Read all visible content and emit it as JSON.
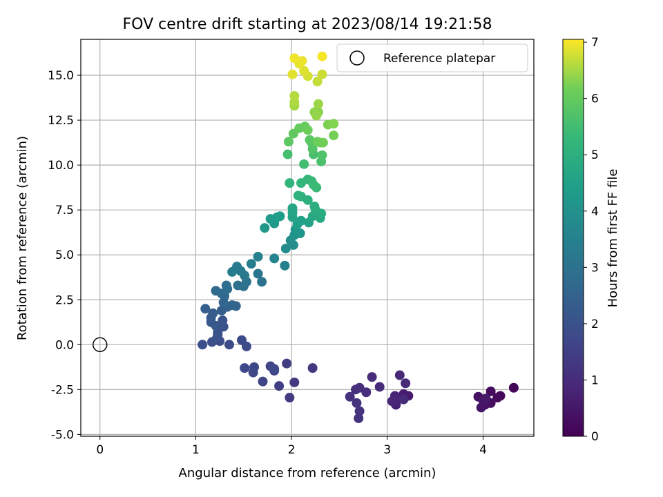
{
  "chart_data": {
    "type": "scatter",
    "title": "FOV centre drift starting at 2023/08/14 19:21:58",
    "xlabel": "Angular distance from reference (arcmin)",
    "ylabel": "Rotation from reference (arcmin)",
    "xlim": [
      -0.2,
      4.53
    ],
    "ylim": [
      -5.1,
      17.0
    ],
    "xticks": [
      0,
      1,
      2,
      3,
      4
    ],
    "yticks": [
      -5.0,
      -2.5,
      0.0,
      2.5,
      5.0,
      7.5,
      10.0,
      12.5,
      15.0
    ],
    "grid": true,
    "legend": {
      "position": "top-right",
      "label": "Reference platepar"
    },
    "reference_point": {
      "x": 0,
      "y": 0
    },
    "colorbar": {
      "label": "Hours from first FF file",
      "range": [
        0,
        7.05
      ],
      "ticks": [
        0,
        1,
        2,
        3,
        4,
        5,
        6,
        7
      ],
      "colormap": "viridis"
    },
    "points": [
      {
        "x": 4.32,
        "y": -2.4,
        "t": 0.1
      },
      {
        "x": 4.18,
        "y": -2.85,
        "t": 0.15
      },
      {
        "x": 4.15,
        "y": -2.95,
        "t": 0.2
      },
      {
        "x": 4.08,
        "y": -2.6,
        "t": 0.25
      },
      {
        "x": 4.08,
        "y": -3.25,
        "t": 0.3
      },
      {
        "x": 3.95,
        "y": -2.9,
        "t": 0.35
      },
      {
        "x": 4.02,
        "y": -3.35,
        "t": 0.4
      },
      {
        "x": 3.98,
        "y": -3.5,
        "t": 0.45
      },
      {
        "x": 4.0,
        "y": -3.1,
        "t": 0.5
      },
      {
        "x": 4.03,
        "y": -3.0,
        "t": 0.55
      },
      {
        "x": 3.22,
        "y": -2.85,
        "t": 0.6
      },
      {
        "x": 3.17,
        "y": -2.75,
        "t": 0.65
      },
      {
        "x": 3.12,
        "y": -3.0,
        "t": 0.7
      },
      {
        "x": 3.09,
        "y": -3.35,
        "t": 0.75
      },
      {
        "x": 3.08,
        "y": -2.85,
        "t": 0.8
      },
      {
        "x": 3.05,
        "y": -3.15,
        "t": 0.85
      },
      {
        "x": 3.13,
        "y": -1.7,
        "t": 0.9
      },
      {
        "x": 3.19,
        "y": -2.15,
        "t": 0.95
      },
      {
        "x": 3.17,
        "y": -3.05,
        "t": 1.0
      },
      {
        "x": 2.92,
        "y": -2.35,
        "t": 1.02
      },
      {
        "x": 2.84,
        "y": -1.8,
        "t": 1.05
      },
      {
        "x": 2.78,
        "y": -2.65,
        "t": 1.08
      },
      {
        "x": 2.71,
        "y": -2.4,
        "t": 1.1
      },
      {
        "x": 2.67,
        "y": -2.5,
        "t": 1.12
      },
      {
        "x": 2.61,
        "y": -2.9,
        "t": 1.14
      },
      {
        "x": 2.68,
        "y": -3.25,
        "t": 1.16
      },
      {
        "x": 2.71,
        "y": -3.7,
        "t": 1.18
      },
      {
        "x": 2.7,
        "y": -4.1,
        "t": 1.2
      },
      {
        "x": 2.22,
        "y": -1.3,
        "t": 1.3
      },
      {
        "x": 2.03,
        "y": -2.1,
        "t": 1.35
      },
      {
        "x": 1.98,
        "y": -2.95,
        "t": 1.4
      },
      {
        "x": 1.95,
        "y": -1.05,
        "t": 1.45
      },
      {
        "x": 1.87,
        "y": -2.3,
        "t": 1.5
      },
      {
        "x": 1.82,
        "y": -1.45,
        "t": 1.55
      },
      {
        "x": 1.78,
        "y": -1.2,
        "t": 1.6
      },
      {
        "x": 1.7,
        "y": -2.05,
        "t": 1.65
      },
      {
        "x": 1.6,
        "y": -1.55,
        "t": 1.7
      },
      {
        "x": 1.61,
        "y": -1.25,
        "t": 1.72
      },
      {
        "x": 1.51,
        "y": -1.3,
        "t": 1.75
      },
      {
        "x": 1.82,
        "y": -1.35,
        "t": 1.78
      },
      {
        "x": 1.48,
        "y": 0.25,
        "t": 1.8
      },
      {
        "x": 1.53,
        "y": -0.1,
        "t": 1.82
      },
      {
        "x": 1.35,
        "y": 0.0,
        "t": 1.85
      },
      {
        "x": 1.25,
        "y": 0.2,
        "t": 1.88
      },
      {
        "x": 1.23,
        "y": 0.55,
        "t": 1.9
      },
      {
        "x": 1.17,
        "y": 0.15,
        "t": 1.92
      },
      {
        "x": 1.07,
        "y": 0.0,
        "t": 1.95
      },
      {
        "x": 1.22,
        "y": 0.35,
        "t": 1.98
      },
      {
        "x": 1.23,
        "y": 0.7,
        "t": 2.0
      },
      {
        "x": 1.29,
        "y": 1.0,
        "t": 2.05
      },
      {
        "x": 1.28,
        "y": 1.35,
        "t": 2.1
      },
      {
        "x": 1.16,
        "y": 1.25,
        "t": 2.15
      },
      {
        "x": 1.21,
        "y": 1.05,
        "t": 2.2
      },
      {
        "x": 1.16,
        "y": 1.5,
        "t": 2.25
      },
      {
        "x": 1.18,
        "y": 1.75,
        "t": 2.3
      },
      {
        "x": 1.27,
        "y": 1.9,
        "t": 2.35
      },
      {
        "x": 1.1,
        "y": 2.0,
        "t": 2.4
      },
      {
        "x": 1.33,
        "y": 2.1,
        "t": 2.45
      },
      {
        "x": 1.42,
        "y": 2.15,
        "t": 2.5
      },
      {
        "x": 1.38,
        "y": 2.2,
        "t": 2.55
      },
      {
        "x": 1.29,
        "y": 2.35,
        "t": 2.6
      },
      {
        "x": 1.3,
        "y": 2.7,
        "t": 2.65
      },
      {
        "x": 1.27,
        "y": 2.85,
        "t": 2.7
      },
      {
        "x": 1.21,
        "y": 3.0,
        "t": 2.75
      },
      {
        "x": 1.33,
        "y": 3.1,
        "t": 2.8
      },
      {
        "x": 1.32,
        "y": 3.3,
        "t": 2.85
      },
      {
        "x": 1.44,
        "y": 3.3,
        "t": 2.9
      },
      {
        "x": 1.5,
        "y": 3.25,
        "t": 2.95
      },
      {
        "x": 1.53,
        "y": 3.5,
        "t": 3.0
      },
      {
        "x": 1.69,
        "y": 3.5,
        "t": 3.05
      },
      {
        "x": 1.65,
        "y": 3.95,
        "t": 3.1
      },
      {
        "x": 1.51,
        "y": 3.85,
        "t": 3.15
      },
      {
        "x": 1.47,
        "y": 4.1,
        "t": 3.2
      },
      {
        "x": 1.43,
        "y": 4.35,
        "t": 3.25
      },
      {
        "x": 1.38,
        "y": 4.05,
        "t": 3.3
      },
      {
        "x": 1.58,
        "y": 4.5,
        "t": 3.35
      },
      {
        "x": 1.65,
        "y": 4.9,
        "t": 3.45
      },
      {
        "x": 1.93,
        "y": 4.4,
        "t": 3.5
      },
      {
        "x": 1.82,
        "y": 4.8,
        "t": 3.6
      },
      {
        "x": 1.94,
        "y": 5.35,
        "t": 3.8
      },
      {
        "x": 2.02,
        "y": 5.55,
        "t": 3.9
      },
      {
        "x": 1.99,
        "y": 5.8,
        "t": 3.95
      },
      {
        "x": 2.03,
        "y": 6.1,
        "t": 4.05
      },
      {
        "x": 2.09,
        "y": 6.2,
        "t": 4.1
      },
      {
        "x": 2.04,
        "y": 6.4,
        "t": 4.15
      },
      {
        "x": 1.72,
        "y": 6.5,
        "t": 4.2
      },
      {
        "x": 1.82,
        "y": 6.75,
        "t": 4.25
      },
      {
        "x": 1.78,
        "y": 7.0,
        "t": 4.3
      },
      {
        "x": 1.85,
        "y": 7.1,
        "t": 4.35
      },
      {
        "x": 1.88,
        "y": 7.15,
        "t": 4.4
      },
      {
        "x": 2.06,
        "y": 6.7,
        "t": 4.45
      },
      {
        "x": 2.1,
        "y": 6.9,
        "t": 4.5
      },
      {
        "x": 2.18,
        "y": 6.8,
        "t": 4.55
      },
      {
        "x": 2.01,
        "y": 7.1,
        "t": 4.6
      },
      {
        "x": 2.01,
        "y": 7.35,
        "t": 4.65
      },
      {
        "x": 2.01,
        "y": 7.6,
        "t": 4.7
      },
      {
        "x": 2.22,
        "y": 7.15,
        "t": 4.75
      },
      {
        "x": 2.3,
        "y": 7.05,
        "t": 4.8
      },
      {
        "x": 2.31,
        "y": 7.3,
        "t": 4.85
      },
      {
        "x": 2.25,
        "y": 7.5,
        "t": 4.9
      },
      {
        "x": 2.24,
        "y": 7.7,
        "t": 4.95
      },
      {
        "x": 2.17,
        "y": 8.05,
        "t": 5.0
      },
      {
        "x": 2.1,
        "y": 8.25,
        "t": 5.05
      },
      {
        "x": 2.07,
        "y": 8.3,
        "t": 5.1
      },
      {
        "x": 1.98,
        "y": 9.0,
        "t": 5.15
      },
      {
        "x": 2.1,
        "y": 9.0,
        "t": 5.2
      },
      {
        "x": 2.17,
        "y": 9.2,
        "t": 5.25
      },
      {
        "x": 2.21,
        "y": 9.1,
        "t": 5.3
      },
      {
        "x": 2.23,
        "y": 8.9,
        "t": 5.35
      },
      {
        "x": 2.26,
        "y": 8.75,
        "t": 5.4
      },
      {
        "x": 2.13,
        "y": 10.05,
        "t": 5.5
      },
      {
        "x": 1.96,
        "y": 10.6,
        "t": 5.55
      },
      {
        "x": 2.23,
        "y": 10.6,
        "t": 5.6
      },
      {
        "x": 2.31,
        "y": 10.2,
        "t": 5.65
      },
      {
        "x": 2.32,
        "y": 10.55,
        "t": 5.7
      },
      {
        "x": 2.22,
        "y": 10.9,
        "t": 5.75
      },
      {
        "x": 2.21,
        "y": 11.25,
        "t": 5.8
      },
      {
        "x": 2.19,
        "y": 11.4,
        "t": 5.85
      },
      {
        "x": 1.97,
        "y": 11.3,
        "t": 5.9
      },
      {
        "x": 2.02,
        "y": 11.75,
        "t": 5.95
      },
      {
        "x": 2.08,
        "y": 12.05,
        "t": 6.0
      },
      {
        "x": 2.14,
        "y": 12.15,
        "t": 6.05
      },
      {
        "x": 2.17,
        "y": 11.95,
        "t": 6.1
      },
      {
        "x": 2.27,
        "y": 11.3,
        "t": 6.12
      },
      {
        "x": 2.3,
        "y": 11.25,
        "t": 6.15
      },
      {
        "x": 2.33,
        "y": 11.25,
        "t": 6.18
      },
      {
        "x": 2.44,
        "y": 11.65,
        "t": 6.2
      },
      {
        "x": 2.38,
        "y": 12.25,
        "t": 6.25
      },
      {
        "x": 2.44,
        "y": 12.3,
        "t": 6.3
      },
      {
        "x": 2.28,
        "y": 12.95,
        "t": 6.35
      },
      {
        "x": 2.24,
        "y": 12.95,
        "t": 6.38
      },
      {
        "x": 2.26,
        "y": 12.75,
        "t": 6.4
      },
      {
        "x": 2.28,
        "y": 13.4,
        "t": 6.45
      },
      {
        "x": 2.03,
        "y": 13.3,
        "t": 6.5
      },
      {
        "x": 2.03,
        "y": 13.5,
        "t": 6.55
      },
      {
        "x": 2.03,
        "y": 13.85,
        "t": 6.6
      },
      {
        "x": 2.27,
        "y": 14.65,
        "t": 6.7
      },
      {
        "x": 2.32,
        "y": 15.05,
        "t": 6.75
      },
      {
        "x": 2.17,
        "y": 14.95,
        "t": 6.8
      },
      {
        "x": 2.13,
        "y": 15.25,
        "t": 6.85
      },
      {
        "x": 2.01,
        "y": 15.05,
        "t": 6.88
      },
      {
        "x": 2.08,
        "y": 15.65,
        "t": 6.9
      },
      {
        "x": 2.11,
        "y": 15.8,
        "t": 6.93
      },
      {
        "x": 2.03,
        "y": 15.95,
        "t": 6.96
      },
      {
        "x": 2.32,
        "y": 16.05,
        "t": 7.0
      }
    ]
  }
}
